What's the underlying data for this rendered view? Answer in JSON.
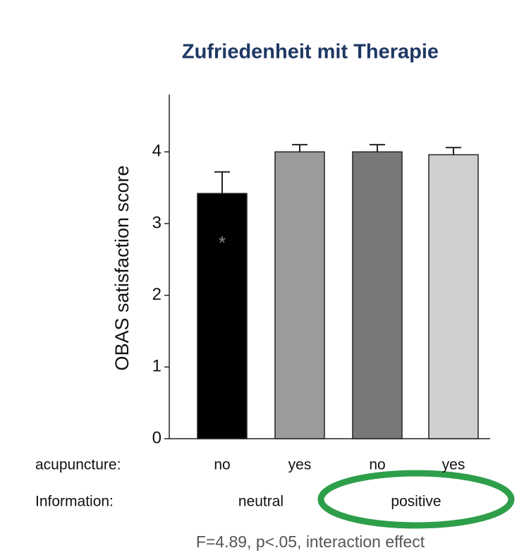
{
  "chart_data": {
    "type": "bar",
    "title": "Zufriedenheit mit Therapie",
    "ylabel": "OBAS satisfaction score",
    "categories": [
      "no",
      "yes",
      "no",
      "yes"
    ],
    "category_label": "acupuncture:",
    "group_label": "Information:",
    "groups": [
      "neutral",
      "positive"
    ],
    "values": [
      3.42,
      4.0,
      4.0,
      3.96
    ],
    "errors": [
      0.3,
      0.1,
      0.1,
      0.1
    ],
    "colors": [
      "#000000",
      "#9b9b9b",
      "#787878",
      "#d0d0d0"
    ],
    "annotation": "*",
    "footnote": "F=4.89, p<.05, interaction effect",
    "ylim": [
      0,
      4.8
    ],
    "yticks": [
      0,
      1,
      2,
      3,
      4
    ],
    "grid": false
  }
}
